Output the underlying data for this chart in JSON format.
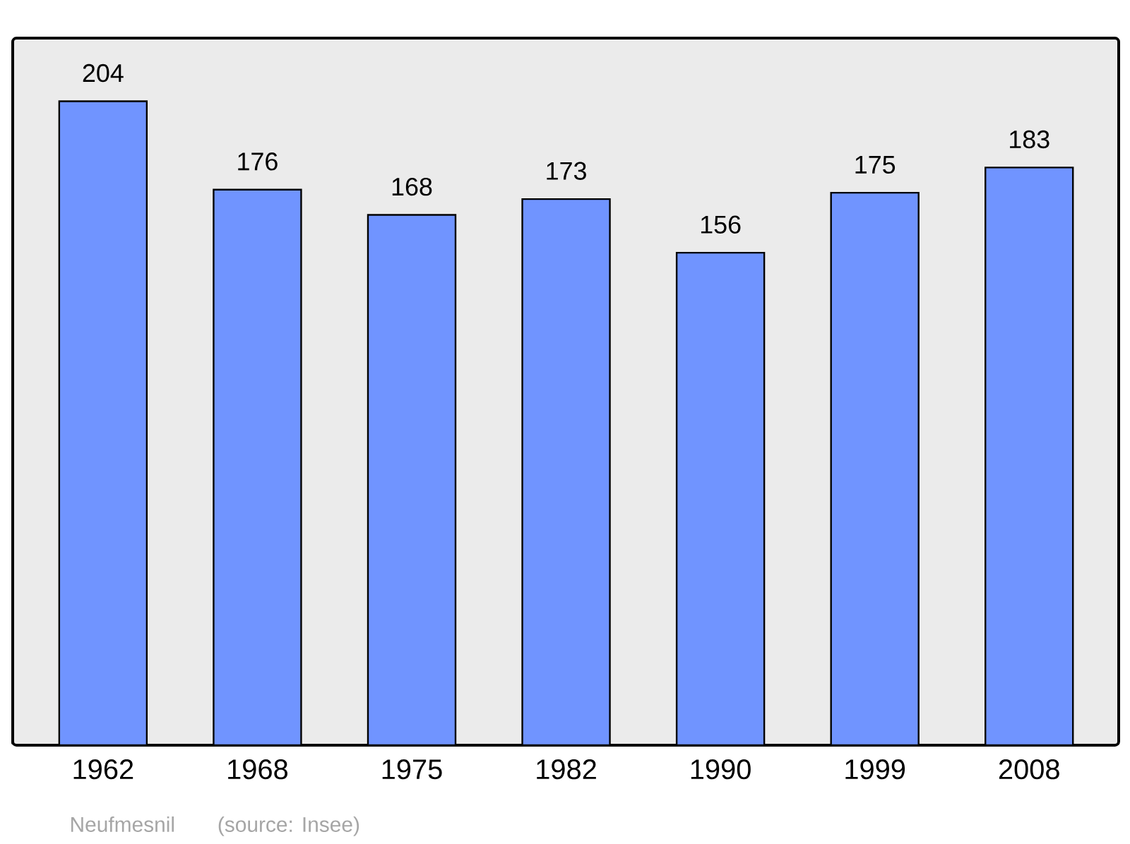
{
  "chart_data": {
    "type": "bar",
    "categories": [
      "1962",
      "1968",
      "1975",
      "1982",
      "1990",
      "1999",
      "2008"
    ],
    "values": [
      204,
      176,
      168,
      173,
      156,
      175,
      183
    ],
    "color": "#7094ff",
    "ylim": [
      0,
      224
    ],
    "data_labels": true,
    "tick_labels": "x",
    "annotations": [
      "Neufmesnil",
      "(source: Insee)"
    ]
  }
}
